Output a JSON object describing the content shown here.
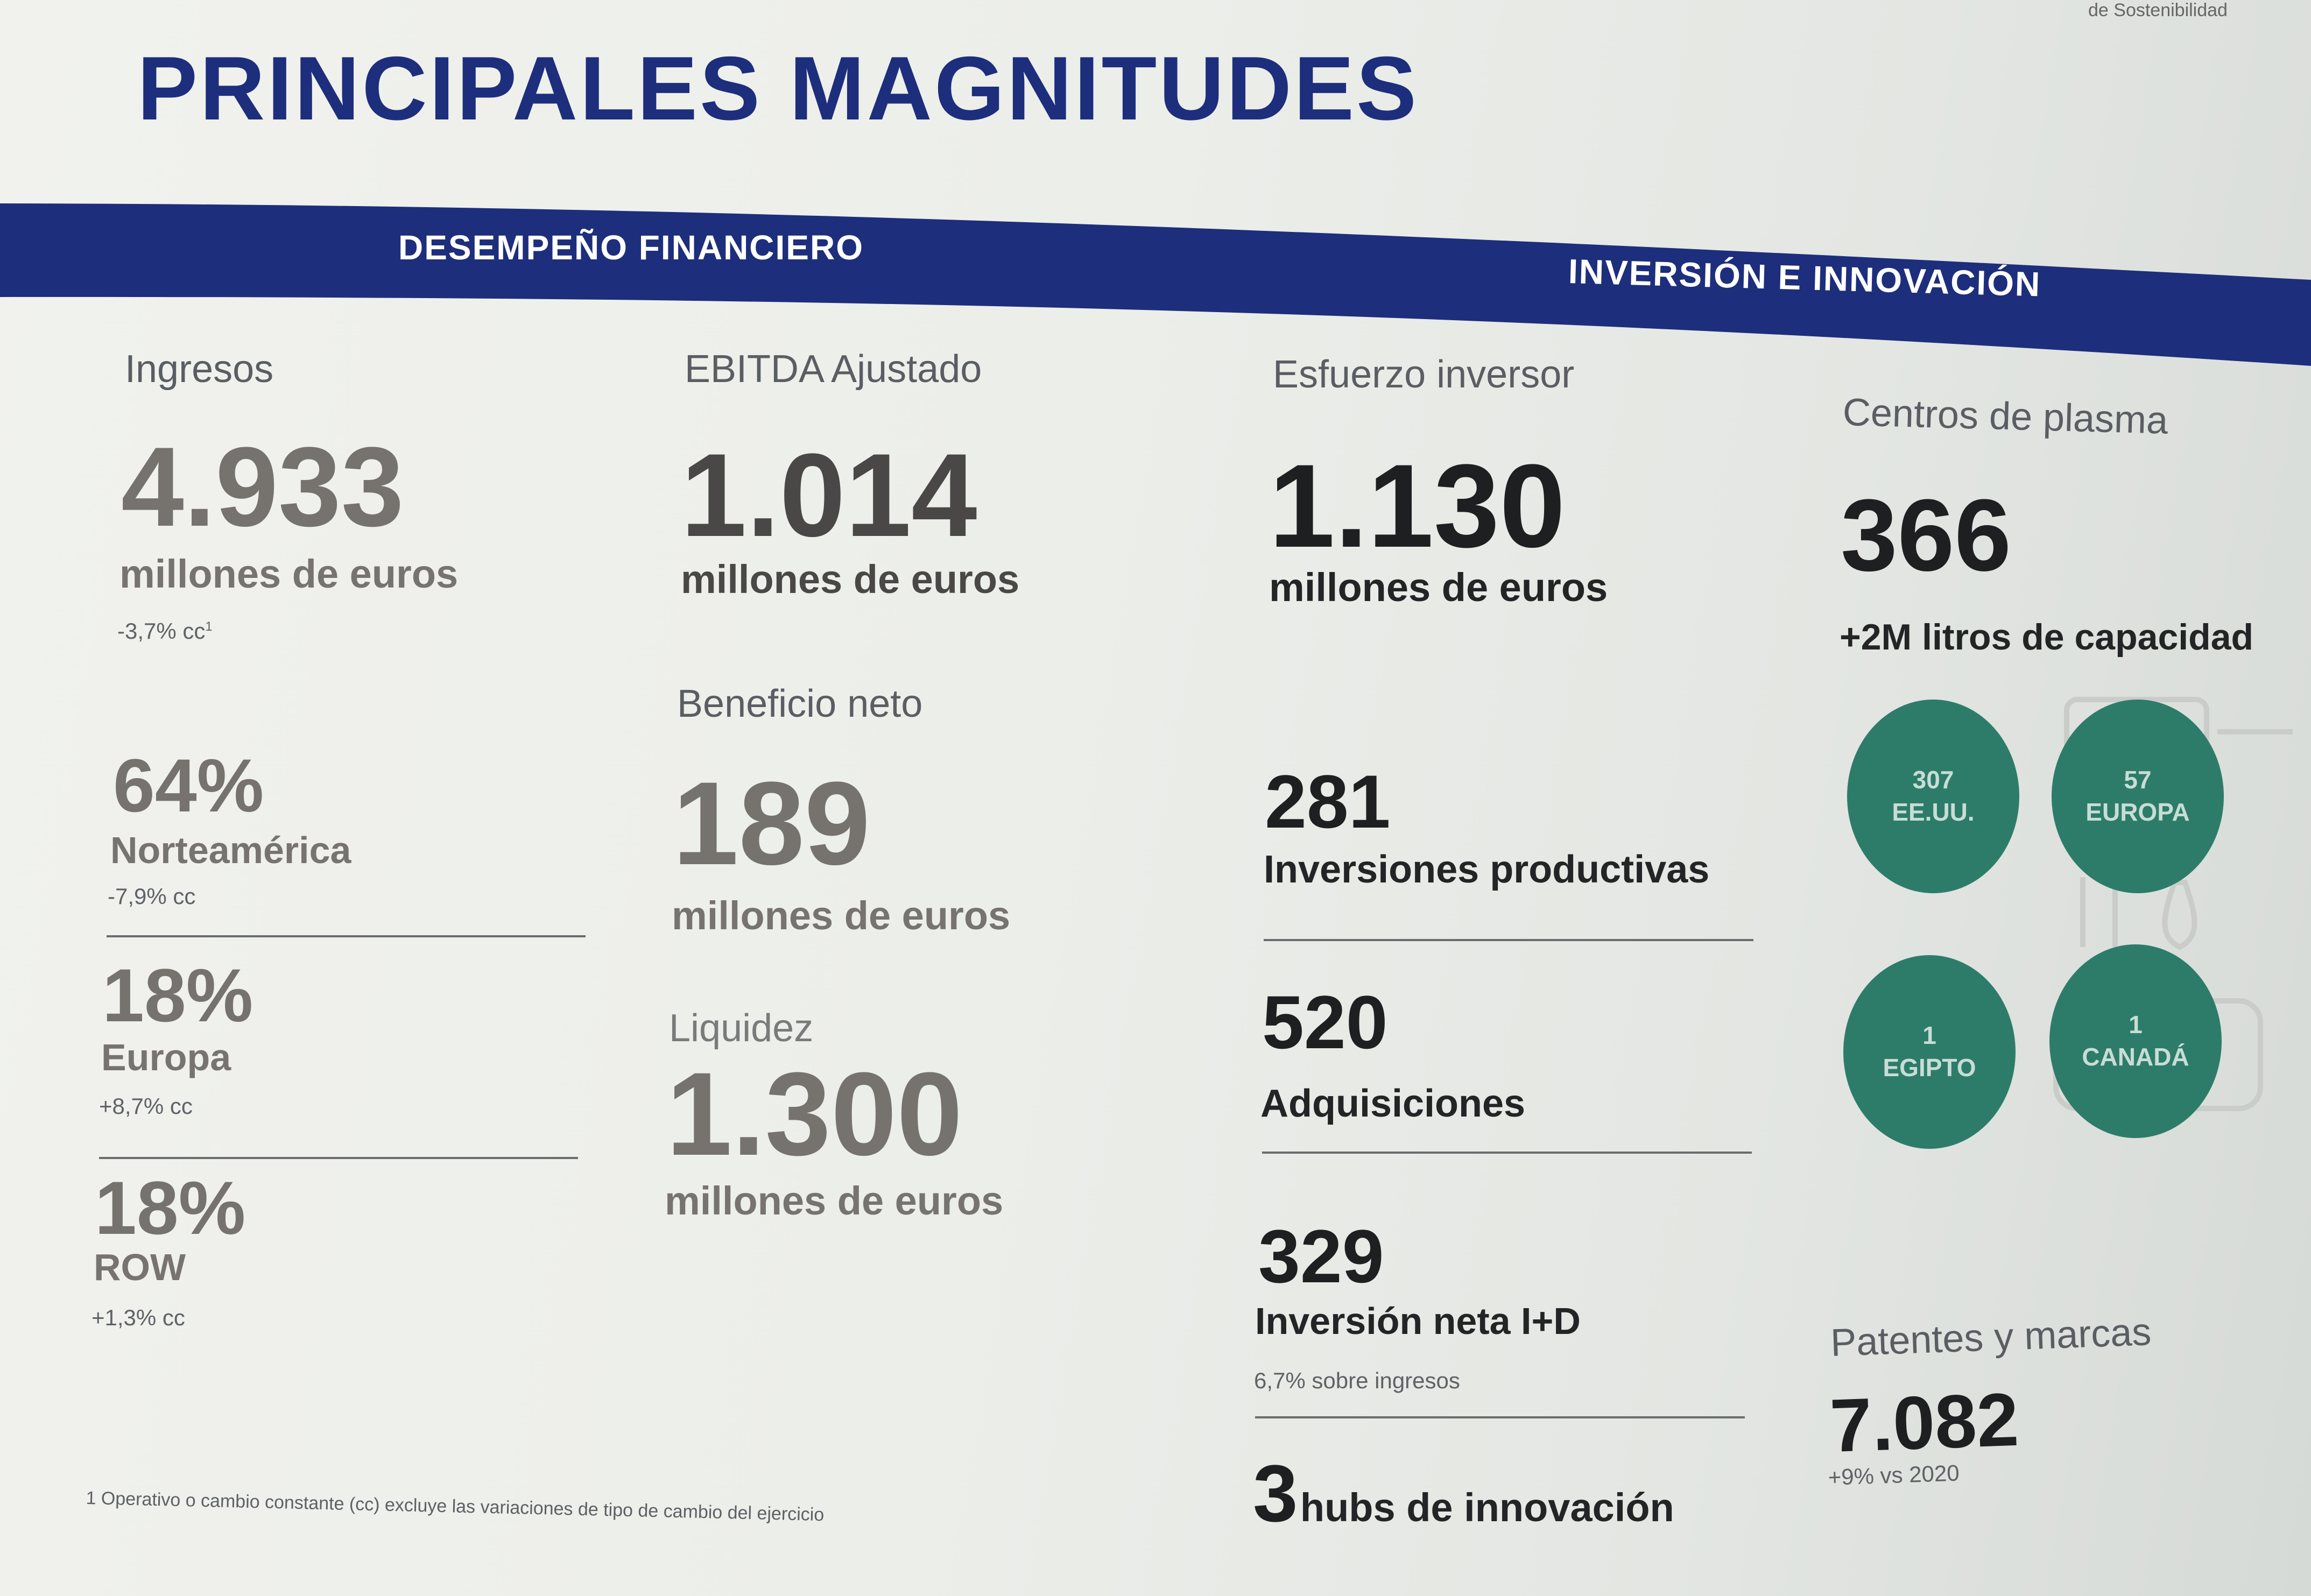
{
  "corner_text": "de Sostenibilidad",
  "title": "PRINCIPALES MAGNITUDES",
  "banner": {
    "left_label": "DESEMPEÑO FINANCIERO",
    "right_label": "INVERSIÓN E INNOVACIÓN",
    "color": "#1d2e7c"
  },
  "col1": {
    "ingresos_label": "Ingresos",
    "ingresos_value": "4.933",
    "ingresos_unit": "millones de euros",
    "ingresos_change": "-3,7% cc",
    "ingresos_footnote_mark": "1",
    "regions": [
      {
        "pct": "64%",
        "name": "Norteamérica",
        "change": "-7,9% cc"
      },
      {
        "pct": "18%",
        "name": "Europa",
        "change": "+8,7% cc"
      },
      {
        "pct": "18%",
        "name": "ROW",
        "change": "+1,3% cc"
      }
    ]
  },
  "col2": {
    "ebitda_label": "EBITDA Ajustado",
    "ebitda_value": "1.014",
    "ebitda_unit": "millones de euros",
    "beneficio_label": "Beneficio neto",
    "beneficio_value": "189",
    "beneficio_unit": "millones de euros",
    "liquidez_label": "Liquidez",
    "liquidez_value": "1.300",
    "liquidez_unit": "millones de euros"
  },
  "col3": {
    "esfuerzo_label": "Esfuerzo inversor",
    "esfuerzo_value": "1.130",
    "esfuerzo_unit": "millones de euros",
    "items": [
      {
        "value": "281",
        "label": "Inversiones productivas",
        "note": ""
      },
      {
        "value": "520",
        "label": "Adquisiciones",
        "note": ""
      },
      {
        "value": "329",
        "label": "Inversión neta I+D",
        "note": "6,7% sobre ingresos"
      }
    ],
    "hubs_value": "3",
    "hubs_label": "hubs de innovación"
  },
  "col4": {
    "centros_label": "Centros de plasma",
    "centros_value": "366",
    "centros_sub": "+2M litros de capacidad",
    "circles": [
      {
        "count": "307",
        "region": "EE.UU."
      },
      {
        "count": "57",
        "region": "EUROPA"
      },
      {
        "count": "1",
        "region": "EGIPTO"
      },
      {
        "count": "1",
        "region": "CANADÁ"
      }
    ],
    "circle_color": "#2d7c6a",
    "patentes_label": "Patentes y marcas",
    "patentes_value": "7.082",
    "patentes_change": "+9% vs 2020"
  },
  "footnote": "1 Operativo o cambio constante (cc) excluye las variaciones de tipo de cambio del ejercicio"
}
